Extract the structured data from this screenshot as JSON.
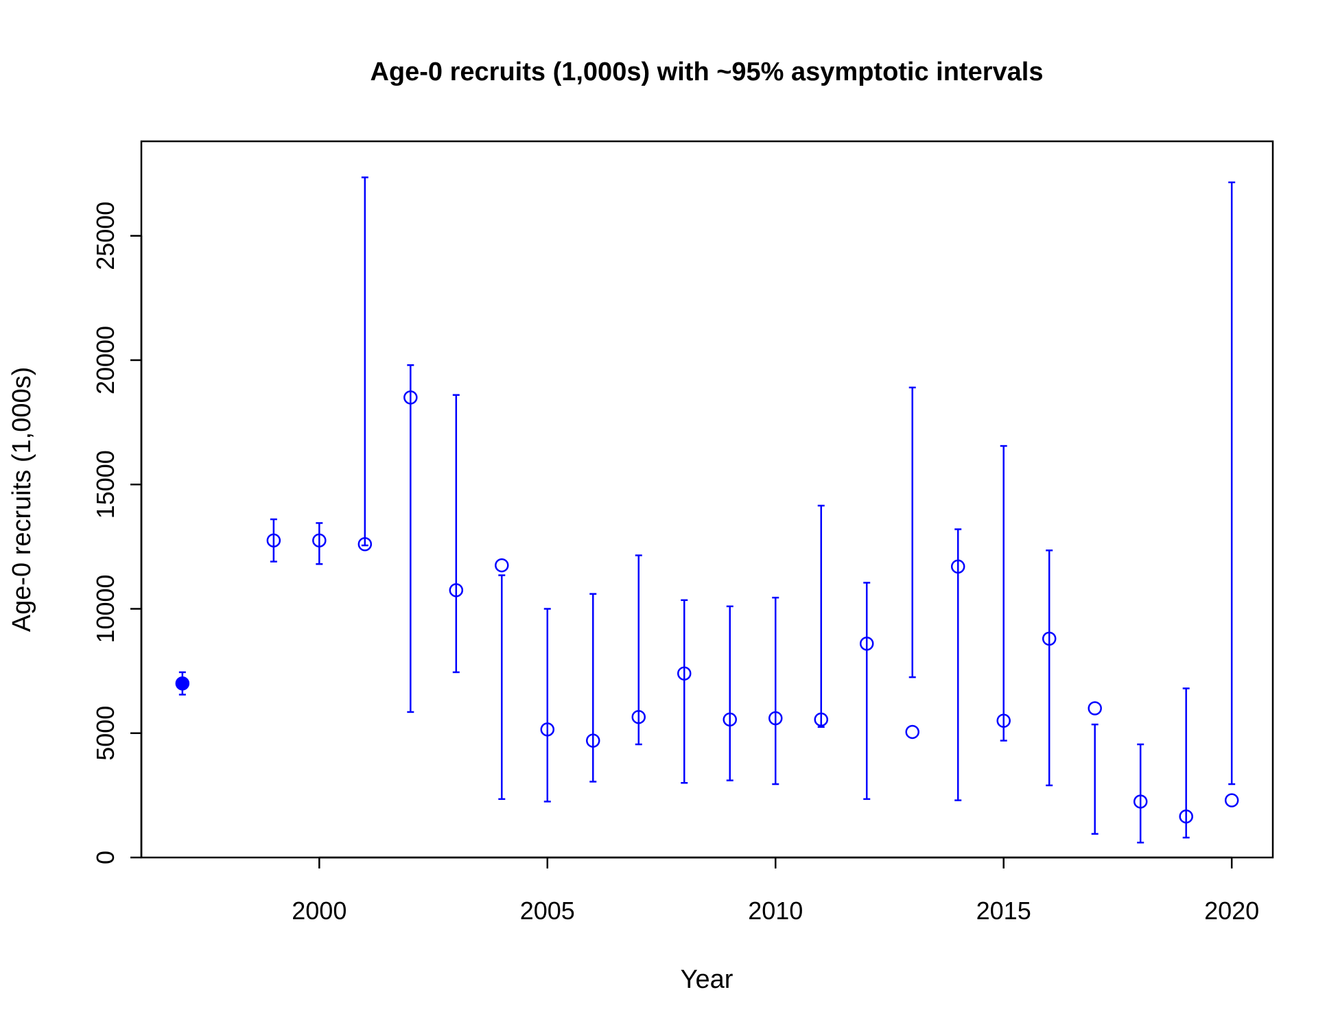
{
  "chart_data": {
    "type": "scatter",
    "title": "Age-0 recruits (1,000s) with ~95% asymptotic intervals",
    "xlabel": "Year",
    "ylabel": "Age-0 recruits (1,000s)",
    "xlim": [
      1996.1,
      2020.9
    ],
    "ylim": [
      0,
      28800
    ],
    "x_ticks": [
      2000,
      2005,
      2010,
      2015,
      2020
    ],
    "y_ticks": [
      0,
      5000,
      10000,
      15000,
      20000,
      25000
    ],
    "grid": false,
    "legend": "none",
    "color": "#0000ff",
    "points": [
      {
        "year": 1997,
        "value": 7000,
        "lower": 6550,
        "upper": 7450,
        "filled": true
      },
      {
        "year": 1999,
        "value": 12750,
        "lower": 11900,
        "upper": 13600,
        "filled": false
      },
      {
        "year": 2000,
        "value": 12750,
        "lower": 11800,
        "upper": 13450,
        "filled": false
      },
      {
        "year": 2001,
        "value": 12600,
        "lower": 12550,
        "upper": 27350,
        "filled": false
      },
      {
        "year": 2002,
        "value": 18500,
        "lower": 5850,
        "upper": 19800,
        "filled": false
      },
      {
        "year": 2003,
        "value": 10750,
        "lower": 7450,
        "upper": 18600,
        "filled": false
      },
      {
        "year": 2004,
        "value": 11750,
        "lower": 2350,
        "upper": 11350,
        "filled": false
      },
      {
        "year": 2005,
        "value": 5150,
        "lower": 2250,
        "upper": 10000,
        "filled": false
      },
      {
        "year": 2006,
        "value": 4700,
        "lower": 3050,
        "upper": 10600,
        "filled": false
      },
      {
        "year": 2007,
        "value": 5650,
        "lower": 4550,
        "upper": 12150,
        "filled": false
      },
      {
        "year": 2008,
        "value": 7400,
        "lower": 3000,
        "upper": 10350,
        "filled": false
      },
      {
        "year": 2009,
        "value": 5550,
        "lower": 3100,
        "upper": 10100,
        "filled": false
      },
      {
        "year": 2010,
        "value": 5600,
        "lower": 2950,
        "upper": 10450,
        "filled": false
      },
      {
        "year": 2011,
        "value": 5550,
        "lower": 5250,
        "upper": 14150,
        "filled": false
      },
      {
        "year": 2012,
        "value": 8600,
        "lower": 2350,
        "upper": 11050,
        "filled": false
      },
      {
        "year": 2013,
        "value": 5050,
        "lower": 7250,
        "upper": 18900,
        "filled": false
      },
      {
        "year": 2014,
        "value": 11700,
        "lower": 2300,
        "upper": 13200,
        "filled": false
      },
      {
        "year": 2015,
        "value": 5500,
        "lower": 4700,
        "upper": 16550,
        "filled": false
      },
      {
        "year": 2016,
        "value": 8800,
        "lower": 2900,
        "upper": 12350,
        "filled": false
      },
      {
        "year": 2017,
        "value": 6000,
        "lower": 950,
        "upper": 5350,
        "filled": false
      },
      {
        "year": 2018,
        "value": 2250,
        "lower": 600,
        "upper": 4550,
        "filled": false
      },
      {
        "year": 2019,
        "value": 1650,
        "lower": 800,
        "upper": 6800,
        "filled": false
      },
      {
        "year": 2020,
        "value": 2300,
        "lower": 2950,
        "upper": 27150,
        "filled": false
      }
    ]
  }
}
